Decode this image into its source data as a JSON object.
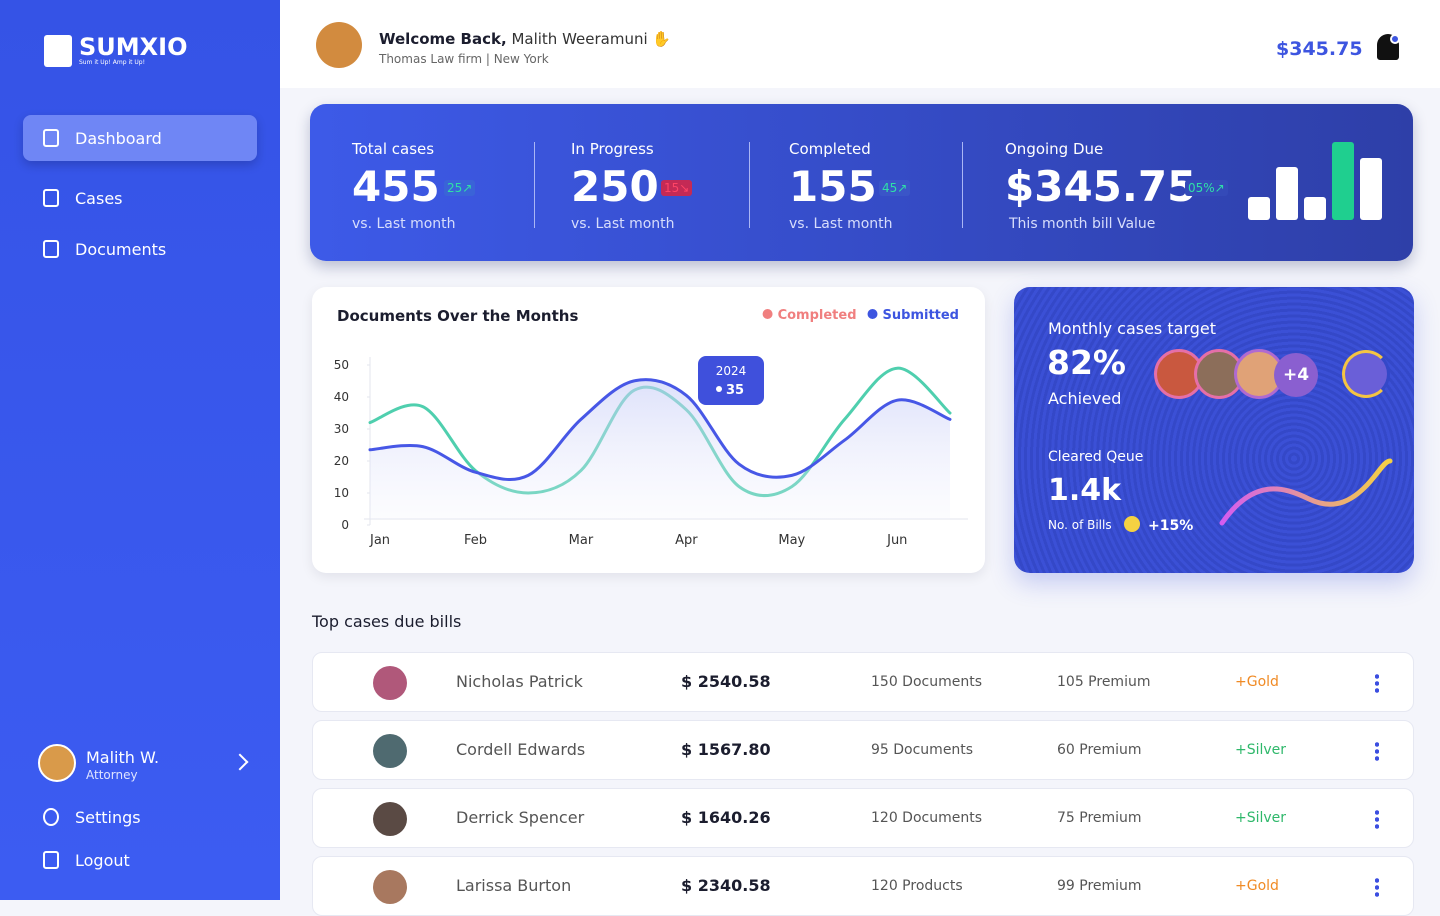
{
  "brand": {
    "name": "SUMXIO",
    "tagline": "Sum it Up! Amp it Up!"
  },
  "nav": [
    "Dashboard",
    "Cases",
    "Documents"
  ],
  "user": {
    "name": "Malith W.",
    "role": "Attorney"
  },
  "footer_nav": [
    "Settings",
    "Logout"
  ],
  "header": {
    "greeting": "Welcome Back,",
    "name": "Malith Weeramuni",
    "subtitle": "Thomas Law firm | New York",
    "balance": "$345.75"
  },
  "stats": [
    {
      "label": "Total cases",
      "value": "455",
      "badge": "25↗",
      "note": "vs. Last month"
    },
    {
      "label": "In Progress",
      "value": "250",
      "badge": "15↘",
      "note": "vs. Last month"
    },
    {
      "label": "Completed",
      "value": "155",
      "badge": "45↗",
      "note": "vs. Last month"
    },
    {
      "label": "Ongoing Due",
      "value": "$345.75",
      "badge": "05%↗",
      "note": "This month bill Value"
    }
  ],
  "chart_data": {
    "type": "line",
    "title": "Documents Over the Months",
    "categories": [
      "Jan",
      null,
      "Feb",
      null,
      "Mar",
      null,
      "Apr",
      null,
      "May",
      null,
      "Jun",
      null
    ],
    "series": [
      {
        "name": "Completed",
        "color": "#4fcfae",
        "legend_color": "#f07f7f",
        "values": [
          32,
          37,
          17,
          10,
          17,
          42,
          36,
          12,
          12,
          33,
          49,
          35
        ]
      },
      {
        "name": "Submitted",
        "color": "#4757e6",
        "legend_color": "#3d55e0",
        "values": [
          23.5,
          24.5,
          16.5,
          15.5,
          33,
          45,
          40.5,
          19,
          15.5,
          26.5,
          39,
          33
        ]
      }
    ],
    "ylim": [
      0,
      50
    ],
    "yticks": [
      0,
      10,
      20,
      30,
      40,
      50
    ],
    "annotation": {
      "label": "2024",
      "value": 35
    }
  },
  "target": {
    "title": "Monthly cases target",
    "value": "82%",
    "caption": "Achieved",
    "extra": "+4",
    "queue_title": "Cleared Qeue",
    "queue_value": "1.4k",
    "queue_caption": "No. of Bills",
    "change": "+15%"
  },
  "table": {
    "title": "Top cases due bills",
    "rows": [
      [
        "Nicholas Patrick",
        "$ 2540.58",
        "150 Documents",
        "105 Premium",
        "+Gold"
      ],
      [
        "Cordell Edwards",
        "$ 1567.80",
        "95 Documents",
        "60 Premium",
        "+Silver"
      ],
      [
        "Derrick Spencer",
        "$ 1640.26",
        "120 Documents",
        "75 Premium",
        "+Silver"
      ],
      [
        "Larissa Burton",
        "$ 2340.58",
        "120 Products",
        "99 Premium",
        "+Gold"
      ]
    ]
  }
}
